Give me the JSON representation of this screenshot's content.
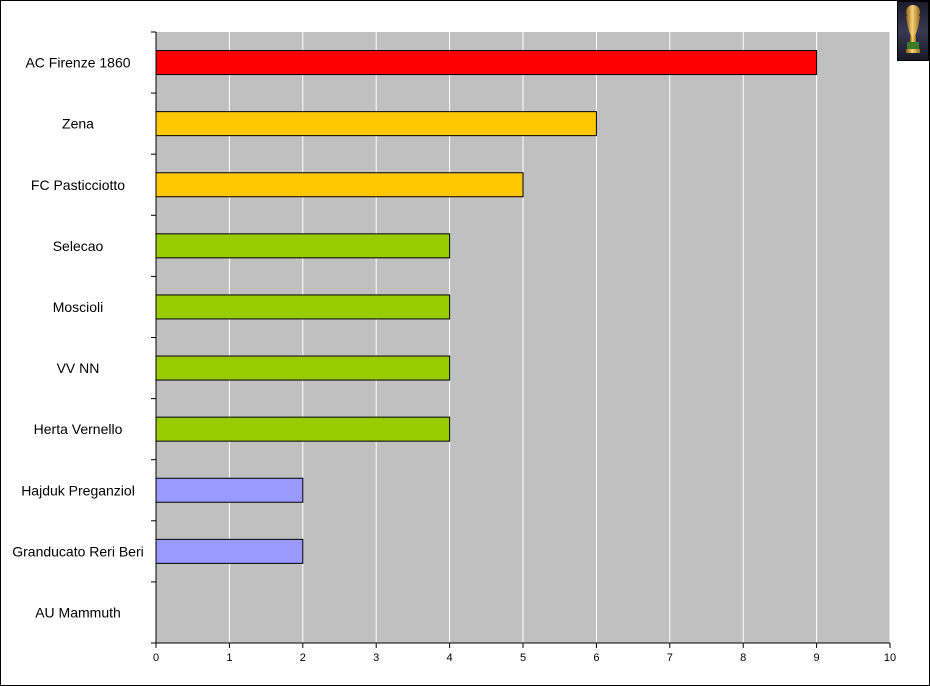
{
  "chart_data": {
    "type": "bar",
    "orientation": "horizontal",
    "categories": [
      "AC Firenze 1860",
      "Zena",
      "FC Pasticciotto",
      "Selecao",
      "Moscioli",
      "VV NN",
      "Herta Vernello",
      "Hajduk Preganziol",
      "Granducato Reri Beri",
      "AU Mammuth"
    ],
    "values": [
      9,
      6,
      5,
      4,
      4,
      4,
      4,
      2,
      2,
      0
    ],
    "bar_colors": [
      "#ff0000",
      "#ffc800",
      "#ffc800",
      "#99cc00",
      "#99cc00",
      "#99cc00",
      "#99cc00",
      "#9999ff",
      "#9999ff",
      "#9999ff"
    ],
    "xlim": [
      0,
      10
    ],
    "x_ticks": [
      "0",
      "1",
      "2",
      "3",
      "4",
      "5",
      "6",
      "7",
      "8",
      "9",
      "10"
    ],
    "title": "",
    "xlabel": "",
    "ylabel": "",
    "grid": "vertical",
    "legend": "none",
    "plot_background": "#c0c0c0",
    "gridline_color": "#ffffff"
  },
  "icons": {
    "corner": "trophy-icon"
  }
}
